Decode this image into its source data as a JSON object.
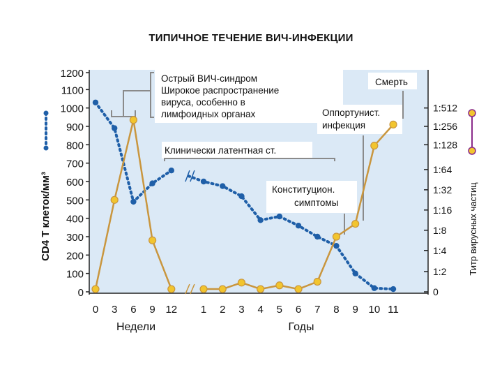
{
  "title": "ТИПИЧНОЕ ТЕЧЕНИЕ ВИЧ-ИНФЕКЦИИ",
  "colors": {
    "panel": "#dbe9f6",
    "cd4_line": "#1f5fa8",
    "viral_line": "#c9963e",
    "viral_marker": "#f2c52e",
    "legend_viral": "#8a2b8a"
  },
  "chart_data": {
    "type": "line",
    "ylabel": "CD4 T клеток/мм³",
    "y2label": "Титр вирусных частиц",
    "y_ticks": [
      "1200",
      "1100",
      "1000",
      "900",
      "800",
      "700",
      "600",
      "500",
      "400",
      "300",
      "200",
      "100",
      "0"
    ],
    "y_tick_values": [
      1200,
      1100,
      1000,
      900,
      800,
      700,
      600,
      500,
      400,
      300,
      200,
      100,
      0
    ],
    "ylim": [
      0,
      1200
    ],
    "y2_ticks": [
      "1:512",
      "1:256",
      "1:128",
      "1:64",
      "1:32",
      "1:16",
      "1:8",
      "1:4",
      "1:2",
      "0"
    ],
    "y2_tick_values": [
      1000,
      900,
      800,
      665,
      555,
      445,
      335,
      225,
      110,
      0
    ],
    "x_ticks_weeks": [
      "0",
      "3",
      "6",
      "9",
      "12"
    ],
    "x_ticks_years": [
      "1",
      "2",
      "3",
      "4",
      "5",
      "6",
      "7",
      "8",
      "9",
      "10",
      "11"
    ],
    "xgroup_weeks": "Недели",
    "xgroup_years": "Годы",
    "x_positions": {
      "w0": 0,
      "w3": 1,
      "w6": 2,
      "w9": 3,
      "w12": 4,
      "y1": 5.7,
      "y2": 6.7,
      "y3": 7.7,
      "y4": 8.7,
      "y5": 9.7,
      "y6": 10.7,
      "y7": 11.7,
      "y8": 12.7,
      "y9": 13.7,
      "y10": 14.7,
      "y11": 15.7
    },
    "series": [
      {
        "name": "CD4",
        "points": [
          [
            0,
            1030
          ],
          [
            1,
            890
          ],
          [
            2,
            490
          ],
          [
            3,
            590
          ],
          [
            4,
            660
          ],
          [
            4.9,
            630
          ],
          [
            5.7,
            600
          ],
          [
            6.7,
            575
          ],
          [
            7.7,
            520
          ],
          [
            8.7,
            390
          ],
          [
            9.7,
            410
          ],
          [
            10.7,
            360
          ],
          [
            11.7,
            300
          ],
          [
            12.7,
            250
          ],
          [
            13.7,
            100
          ],
          [
            14.7,
            20
          ],
          [
            15.7,
            15
          ]
        ],
        "markers": [
          0,
          1,
          2,
          3,
          4,
          6,
          7,
          8,
          9,
          10,
          11,
          12,
          13,
          14,
          15,
          16
        ],
        "break_after": 4
      },
      {
        "name": "Титр вирусных частиц",
        "points": [
          [
            0,
            15
          ],
          [
            1,
            500
          ],
          [
            2,
            935
          ],
          [
            3,
            280
          ],
          [
            4,
            15
          ],
          [
            5.7,
            15
          ],
          [
            6.7,
            15
          ],
          [
            7.7,
            50
          ],
          [
            8.7,
            15
          ],
          [
            9.7,
            35
          ],
          [
            10.7,
            15
          ],
          [
            11.7,
            55
          ],
          [
            12.7,
            300
          ],
          [
            13.7,
            370
          ],
          [
            14.7,
            795
          ],
          [
            15.7,
            910
          ]
        ],
        "break_after": 4
      }
    ],
    "annotations": {
      "acute": [
        "Острый ВИЧ-синдром",
        "Широкое распространение",
        "вируса, особенно в",
        "лимфоидных органах"
      ],
      "death": "Смерть",
      "opportunistic": [
        "Оппортунист.",
        "инфекция"
      ],
      "latent": "Клинически латентная ст.",
      "constitutional": [
        "Конституцион.",
        "симптомы"
      ]
    }
  }
}
